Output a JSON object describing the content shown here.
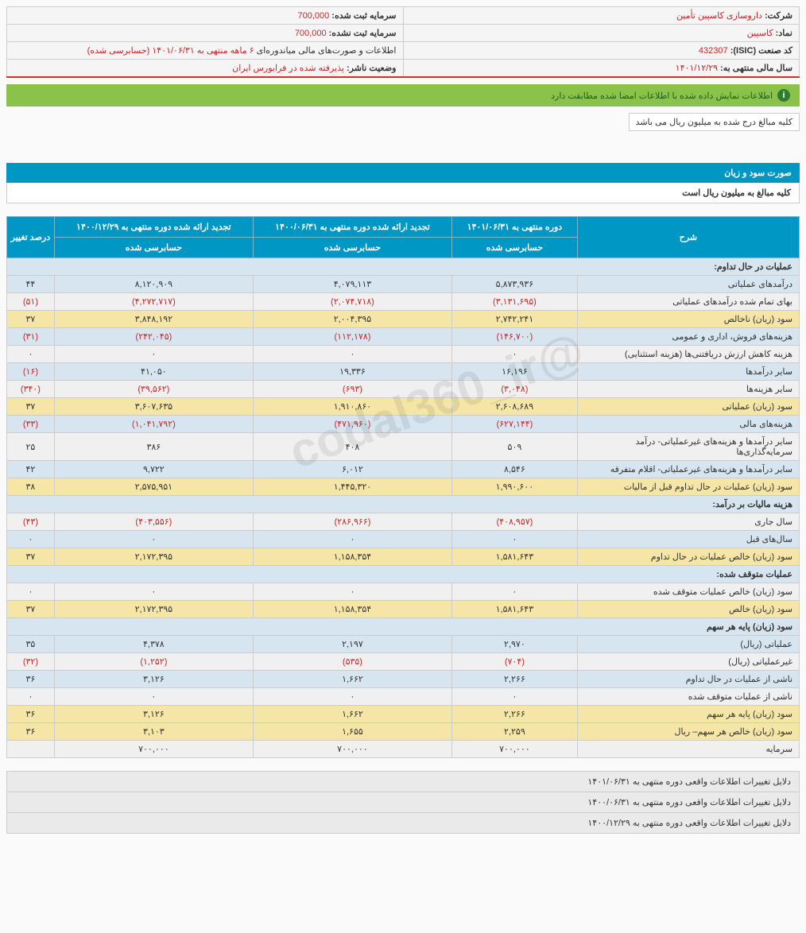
{
  "watermark": "@codal360_ir",
  "info": {
    "company_label": "شرکت:",
    "company_value": "داروسازی کاسپین تأمین",
    "capital_reg_label": "سرمایه ثبت شده:",
    "capital_reg_value": "700,000",
    "symbol_label": "نماد:",
    "symbol_value": "کاسپین",
    "capital_unreg_label": "سرمایه ثبت نشده:",
    "capital_unreg_value": "700,000",
    "isic_label": "کد صنعت (ISIC):",
    "isic_value": "432307",
    "report_label": "اطلاعات و صورت‌های مالی میاندوره‌ای",
    "report_value": "۶ ماهه منتهی به ۱۴۰۱/۰۶/۳۱ (حسابرسی شده)",
    "fyear_label": "سال مالی منتهی به:",
    "fyear_value": "۱۴۰۱/۱۲/۲۹",
    "status_label": "وضعیت ناشر:",
    "status_value": "پذیرفته شده در فرابورس ایران"
  },
  "alert": "اطلاعات نمایش داده شده با اطلاعات امضا شده مطابقت دارد",
  "note": "کلیه مبالغ درج شده به میلیون ریال می باشد",
  "section": {
    "title": "صورت سود و زیان",
    "sub": "کلیه مبالغ به میلیون ریال است"
  },
  "headers": {
    "desc": "شرح",
    "p1_top": "دوره منتهی به ۱۴۰۱/۰۶/۳۱",
    "p1_sub": "حسابرسی شده",
    "p2_top": "تجدید ارائه شده دوره منتهی به ۱۴۰۰/۰۶/۳۱",
    "p2_sub": "حسابرسی شده",
    "p3_top": "تجدید ارائه شده دوره منتهی به ۱۴۰۰/۱۲/۲۹",
    "p3_sub": "حسابرسی شده",
    "pct": "درصد تغییر"
  },
  "rows": [
    {
      "type": "group",
      "desc": "عملیات در حال تداوم:"
    },
    {
      "type": "even",
      "desc": "درآمدهای عملیاتی",
      "c1": "۵,۸۷۳,۹۳۶",
      "c2": "۴,۰۷۹,۱۱۳",
      "c3": "۸,۱۲۰,۹۰۹",
      "pct": "۴۴"
    },
    {
      "type": "odd",
      "desc": "بهای تمام شده درآمدهای عملیاتی",
      "c1": "(۳,۱۳۱,۶۹۵)",
      "c1n": true,
      "c2": "(۲,۰۷۴,۷۱۸)",
      "c2n": true,
      "c3": "(۴,۲۷۲,۷۱۷)",
      "c3n": true,
      "pct": "(۵۱)",
      "pctn": true
    },
    {
      "type": "yellow",
      "desc": "سود (زیان) ناخالص",
      "c1": "۲,۷۴۲,۲۴۱",
      "c2": "۲,۰۰۴,۳۹۵",
      "c3": "۳,۸۴۸,۱۹۲",
      "pct": "۳۷"
    },
    {
      "type": "even",
      "desc": "هزینه‌های فروش، اداری و عمومی",
      "c1": "(۱۴۶,۷۰۰)",
      "c1n": true,
      "c2": "(۱۱۲,۱۷۸)",
      "c2n": true,
      "c3": "(۲۴۲,۰۴۵)",
      "c3n": true,
      "pct": "(۳۱)",
      "pctn": true
    },
    {
      "type": "odd",
      "desc": "هزینه کاهش ارزش دریافتنی‌ها (هزینه استثنایی)",
      "c1": "۰",
      "c2": "۰",
      "c3": "۰",
      "pct": "۰"
    },
    {
      "type": "even",
      "desc": "سایر درآمدها",
      "c1": "۱۶,۱۹۶",
      "c2": "۱۹,۳۳۶",
      "c3": "۴۱,۰۵۰",
      "pct": "(۱۶)",
      "pctn": true
    },
    {
      "type": "odd",
      "desc": "سایر هزینه‌ها",
      "c1": "(۳,۰۴۸)",
      "c1n": true,
      "c2": "(۶۹۳)",
      "c2n": true,
      "c3": "(۳۹,۵۶۲)",
      "c3n": true,
      "pct": "(۳۴۰)",
      "pctn": true
    },
    {
      "type": "yellow",
      "desc": "سود (زیان) عملیاتی",
      "c1": "۲,۶۰۸,۶۸۹",
      "c2": "۱,۹۱۰,۸۶۰",
      "c3": "۳,۶۰۷,۶۳۵",
      "pct": "۳۷"
    },
    {
      "type": "even",
      "desc": "هزینه‌های مالی",
      "c1": "(۶۲۷,۱۴۴)",
      "c1n": true,
      "c2": "(۴۷۱,۹۶۰)",
      "c2n": true,
      "c3": "(۱,۰۴۱,۷۹۲)",
      "c3n": true,
      "pct": "(۳۳)",
      "pctn": true
    },
    {
      "type": "odd",
      "desc": "سایر درآمدها و هزینه‌های غیرعملیاتی- درآمد سرمایه‌گذاری‌ها",
      "c1": "۵۰۹",
      "c2": "۴۰۸",
      "c3": "۳۸۶",
      "pct": "۲۵"
    },
    {
      "type": "even",
      "desc": "سایر درآمدها و هزینه‌های غیرعملیاتی- اقلام متفرقه",
      "c1": "۸,۵۴۶",
      "c2": "۶,۰۱۲",
      "c3": "۹,۷۲۲",
      "pct": "۴۲"
    },
    {
      "type": "yellow",
      "desc": "سود (زیان) عملیات در حال تداوم قبل از مالیات",
      "c1": "۱,۹۹۰,۶۰۰",
      "c2": "۱,۴۴۵,۳۲۰",
      "c3": "۲,۵۷۵,۹۵۱",
      "pct": "۳۸"
    },
    {
      "type": "group",
      "desc": "هزینه مالیات بر درآمد:"
    },
    {
      "type": "odd",
      "desc": "سال جاری",
      "c1": "(۴۰۸,۹۵۷)",
      "c1n": true,
      "c2": "(۲۸۶,۹۶۶)",
      "c2n": true,
      "c3": "(۴۰۳,۵۵۶)",
      "c3n": true,
      "pct": "(۴۳)",
      "pctn": true
    },
    {
      "type": "even",
      "desc": "سال‌های قبل",
      "c1": "۰",
      "c2": "۰",
      "c3": "۰",
      "pct": "۰"
    },
    {
      "type": "yellow",
      "desc": "سود (زیان) خالص عملیات در حال تداوم",
      "c1": "۱,۵۸۱,۶۴۳",
      "c2": "۱,۱۵۸,۳۵۴",
      "c3": "۲,۱۷۲,۳۹۵",
      "pct": "۳۷"
    },
    {
      "type": "group",
      "desc": "عملیات متوقف شده:"
    },
    {
      "type": "odd",
      "desc": "سود (زیان) خالص عملیات متوقف شده",
      "c1": "۰",
      "c2": "۰",
      "c3": "۰",
      "pct": "۰"
    },
    {
      "type": "yellow",
      "desc": "سود (زیان) خالص",
      "c1": "۱,۵۸۱,۶۴۳",
      "c2": "۱,۱۵۸,۳۵۴",
      "c3": "۲,۱۷۲,۳۹۵",
      "pct": "۳۷"
    },
    {
      "type": "group",
      "desc": "سود (زیان) پایه هر سهم"
    },
    {
      "type": "even",
      "desc": "عملیاتی (ریال)",
      "c1": "۲,۹۷۰",
      "c2": "۲,۱۹۷",
      "c3": "۴,۳۷۸",
      "pct": "۳۵"
    },
    {
      "type": "odd",
      "desc": "غیرعملیاتی (ریال)",
      "c1": "(۷۰۴)",
      "c1n": true,
      "c2": "(۵۳۵)",
      "c2n": true,
      "c3": "(۱,۲۵۲)",
      "c3n": true,
      "pct": "(۳۲)",
      "pctn": true
    },
    {
      "type": "even",
      "desc": "ناشی از عملیات در حال تداوم",
      "c1": "۲,۲۶۶",
      "c2": "۱,۶۶۲",
      "c3": "۳,۱۲۶",
      "pct": "۳۶"
    },
    {
      "type": "odd",
      "desc": "ناشی از عملیات متوقف شده",
      "c1": "۰",
      "c2": "۰",
      "c3": "۰",
      "pct": "۰"
    },
    {
      "type": "yellow",
      "desc": "سود (زیان) پایه هر سهم",
      "c1": "۲,۲۶۶",
      "c2": "۱,۶۶۲",
      "c3": "۳,۱۲۶",
      "pct": "۳۶"
    },
    {
      "type": "yellow",
      "desc": "سود (زیان) خالص هر سهم– ریال",
      "c1": "۲,۲۵۹",
      "c2": "۱,۶۵۵",
      "c3": "۳,۱۰۳",
      "pct": "۳۶"
    },
    {
      "type": "odd",
      "desc": "سرمایه",
      "c1": "۷۰۰,۰۰۰",
      "c2": "۷۰۰,۰۰۰",
      "c3": "۷۰۰,۰۰۰",
      "pct": ""
    }
  ],
  "footer": [
    "دلایل تغییرات اطلاعات واقعی دوره منتهی به ۱۴۰۱/۰۶/۳۱",
    "دلایل تغییرات اطلاعات واقعی دوره منتهی به ۱۴۰۰/۰۶/۳۱",
    "دلایل تغییرات اطلاعات واقعی دوره منتهی به ۱۴۰۰/۱۲/۲۹"
  ]
}
